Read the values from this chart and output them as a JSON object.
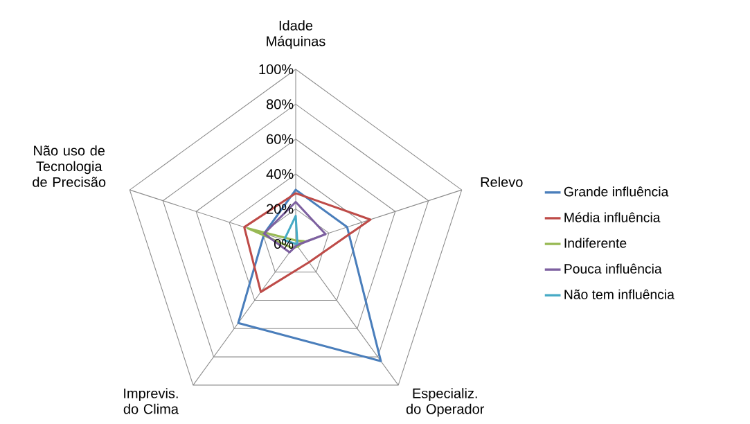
{
  "chart_data": {
    "type": "radar",
    "categories": [
      "Idade Máquinas",
      "Relevo",
      "Especializ. do Operador",
      "Imprevis. do Clima",
      "Não uso de Tecnologia de Precisão"
    ],
    "series": [
      {
        "name": "Grande influência",
        "color": "#4a7ebb",
        "values": [
          31,
          31,
          83,
          56,
          19
        ]
      },
      {
        "name": "Média influência",
        "color": "#be4b48",
        "values": [
          29,
          45,
          13,
          34,
          31
        ]
      },
      {
        "name": "Indiferente",
        "color": "#98b954",
        "values": [
          2,
          5,
          2,
          3,
          29
        ]
      },
      {
        "name": "Pouca influência",
        "color": "#7d60a0",
        "values": [
          24,
          18,
          1,
          6,
          19
        ]
      },
      {
        "name": "Não tem influência",
        "color": "#46aac5",
        "values": [
          16,
          1,
          0,
          0,
          7
        ]
      }
    ],
    "ylim": [
      0,
      100
    ],
    "yticks": [
      {
        "value": 0,
        "label": "0%"
      },
      {
        "value": 20,
        "label": "20%"
      },
      {
        "value": 40,
        "label": "40%"
      },
      {
        "value": 60,
        "label": "60%"
      },
      {
        "value": 80,
        "label": "80%"
      },
      {
        "value": 100,
        "label": "100%"
      }
    ],
    "grid": true,
    "legend": "right"
  }
}
